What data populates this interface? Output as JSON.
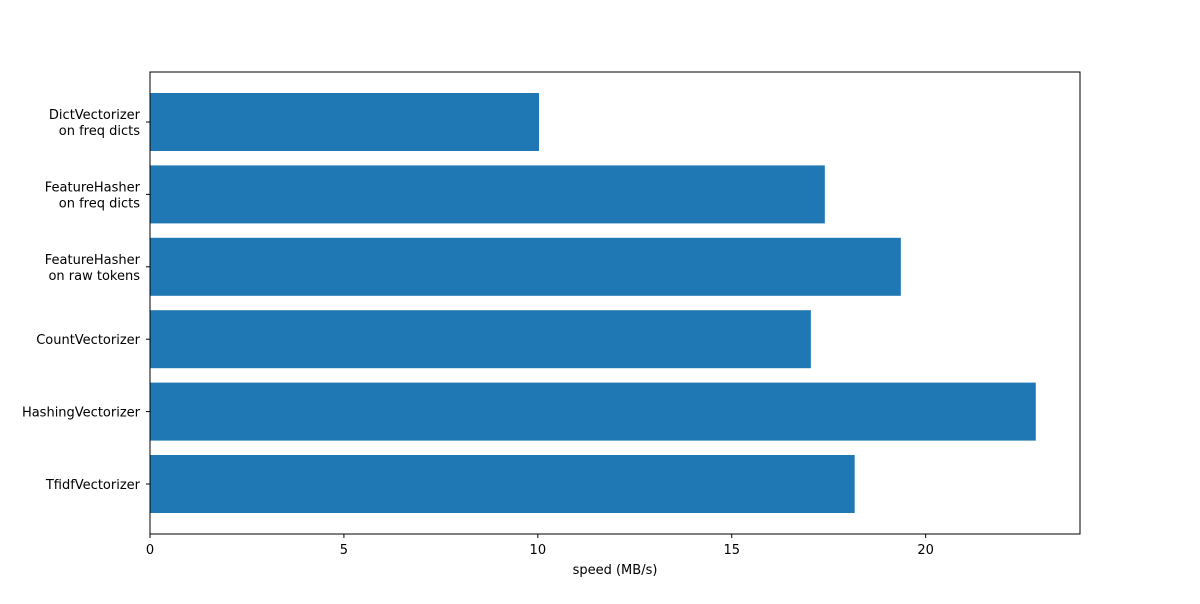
{
  "chart_data": {
    "type": "barh",
    "xlabel": "speed (MB/s)",
    "categories": [
      "DictVectorizer\non freq dicts",
      "FeatureHasher\non freq dicts",
      "FeatureHasher\non raw tokens",
      "CountVectorizer",
      "HashingVectorizer",
      "TfidfVectorizer"
    ],
    "values": [
      10.03,
      17.4,
      19.36,
      17.04,
      22.84,
      18.17
    ],
    "color": "#1f77b4",
    "xlim": [
      0,
      23.98
    ],
    "xticks": [
      0,
      5,
      10,
      15,
      20
    ],
    "grid": false
  }
}
